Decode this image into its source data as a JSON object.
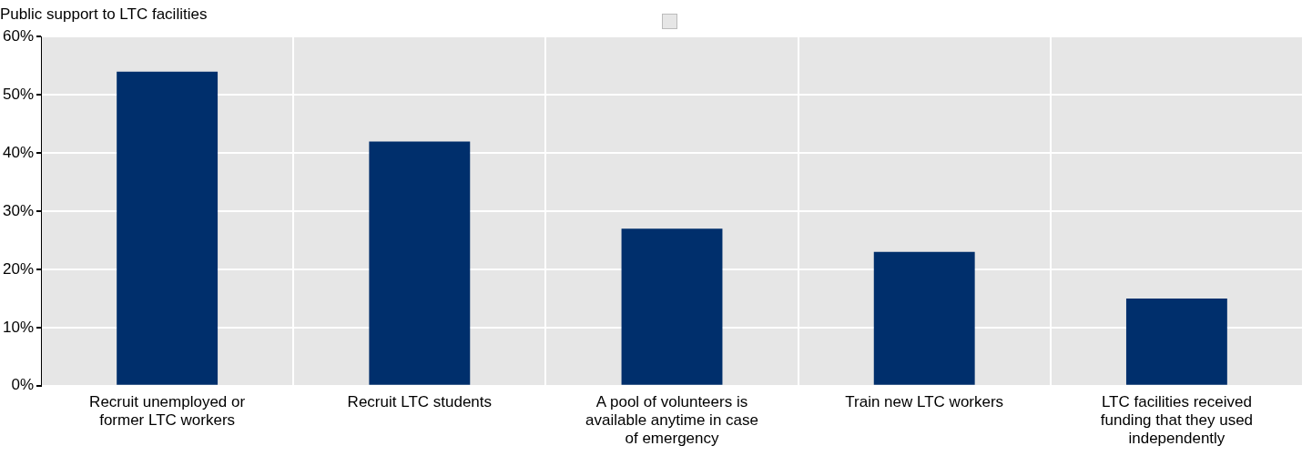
{
  "chart_data": {
    "type": "bar",
    "title": "Public support to LTC facilities",
    "categories": [
      "Recruit unemployed or former LTC workers",
      "Recruit LTC students",
      "A pool of volunteers is available anytime in case of emergency",
      "Train new LTC workers",
      "LTC facilities received funding that they used independently"
    ],
    "values": [
      54,
      42,
      27,
      23,
      15
    ],
    "color": "#002f6c",
    "ylim": [
      0,
      60
    ],
    "yticks": [
      {
        "value": 0,
        "label": "0%"
      },
      {
        "value": 10,
        "label": "10%"
      },
      {
        "value": 20,
        "label": "20%"
      },
      {
        "value": 30,
        "label": "30%"
      },
      {
        "value": 40,
        "label": "40%"
      },
      {
        "value": 50,
        "label": "50%"
      },
      {
        "value": 60,
        "label": "60%"
      }
    ],
    "grid": true
  }
}
